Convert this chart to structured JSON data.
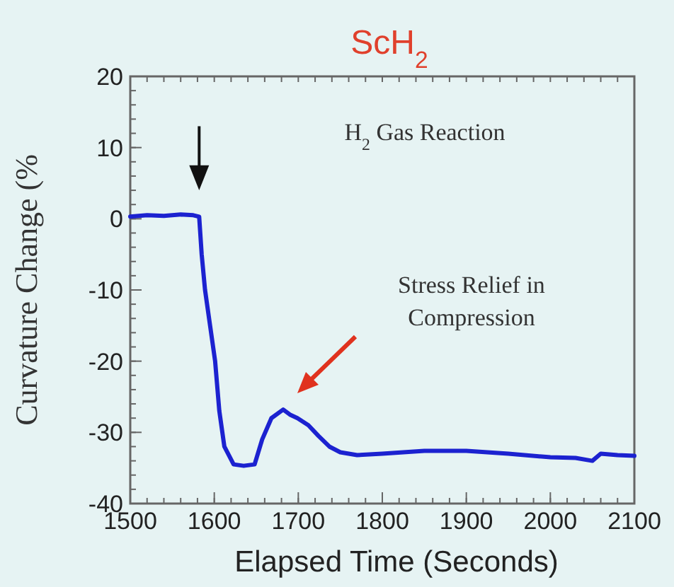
{
  "chart_data": {
    "type": "line",
    "title": "ScH$_{2}$",
    "xlabel": "Elapsed Time (Seconds)",
    "ylabel": "Curvature Change (%",
    "xlim": [
      1500,
      2100
    ],
    "xticks": [
      1500,
      1600,
      1700,
      1800,
      1900,
      2000,
      2100
    ],
    "ylim": [
      -40,
      20
    ],
    "yticks": [
      -40,
      -30,
      -20,
      -10,
      0,
      10,
      20
    ],
    "series": [
      {
        "color": "#1c22d0",
        "x": [
          1500,
          1520,
          1540,
          1560,
          1575,
          1582,
          1585,
          1589,
          1595,
          1601,
          1606,
          1612,
          1623,
          1635,
          1648,
          1657,
          1668,
          1682,
          1690,
          1699,
          1712,
          1724,
          1737,
          1750,
          1770,
          1800,
          1850,
          1900,
          1950,
          2000,
          2030,
          2050,
          2060,
          2080,
          2100
        ],
        "values": [
          0.3,
          0.5,
          0.4,
          0.6,
          0.5,
          0.3,
          -5,
          -10,
          -15,
          -20,
          -27,
          -32,
          -34.5,
          -34.7,
          -34.5,
          -31,
          -28,
          -26.8,
          -27.5,
          -28,
          -29,
          -30.5,
          -32,
          -32.8,
          -33.2,
          -33,
          -32.6,
          -32.6,
          -33,
          -33.5,
          -33.6,
          -34,
          -33,
          -33.2,
          -33.3
        ]
      }
    ],
    "annotations": [
      "H$_{2}$ Gas Reaction",
      "Stress Relief in Compression"
    ],
    "marker": "none",
    "line_style": "solid",
    "grid": false
  }
}
